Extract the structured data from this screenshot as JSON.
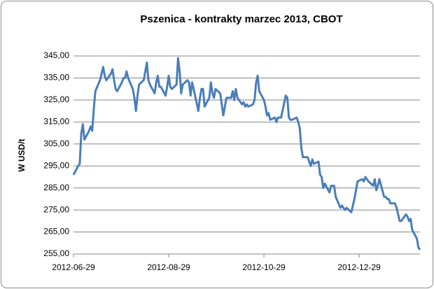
{
  "chart_data": {
    "type": "line",
    "title": "Pszenica - kontrakty marzec 2013, CBOT",
    "y_label": "W USD/t",
    "color": "#4a7ebb",
    "grid": true,
    "ylim": [
      255,
      345
    ],
    "yticks": [
      {
        "value": 255,
        "label": "255,00"
      },
      {
        "value": 265,
        "label": "265,00"
      },
      {
        "value": 275,
        "label": "275,00"
      },
      {
        "value": 285,
        "label": "285,00"
      },
      {
        "value": 295,
        "label": "295,00"
      },
      {
        "value": 305,
        "label": "305,00"
      },
      {
        "value": 315,
        "label": "315,00"
      },
      {
        "value": 325,
        "label": "325,00"
      },
      {
        "value": 335,
        "label": "335,00"
      },
      {
        "value": 345,
        "label": "345,00"
      }
    ],
    "xlim": [
      "2012-06-29",
      "2013-02-06"
    ],
    "xticks": [
      "2012-06-29",
      "2012-08-29",
      "2012-10-29",
      "2012-12-29"
    ],
    "x": [
      "2012-06-29",
      "2012-07-02",
      "2012-07-03",
      "2012-07-04",
      "2012-07-05",
      "2012-07-06",
      "2012-07-09",
      "2012-07-10",
      "2012-07-11",
      "2012-07-12",
      "2012-07-13",
      "2012-07-16",
      "2012-07-17",
      "2012-07-18",
      "2012-07-19",
      "2012-07-20",
      "2012-07-23",
      "2012-07-24",
      "2012-07-25",
      "2012-07-26",
      "2012-07-27",
      "2012-07-30",
      "2012-07-31",
      "2012-08-01",
      "2012-08-02",
      "2012-08-03",
      "2012-08-06",
      "2012-08-07",
      "2012-08-08",
      "2012-08-09",
      "2012-08-10",
      "2012-08-13",
      "2012-08-14",
      "2012-08-15",
      "2012-08-16",
      "2012-08-17",
      "2012-08-20",
      "2012-08-21",
      "2012-08-22",
      "2012-08-23",
      "2012-08-24",
      "2012-08-27",
      "2012-08-28",
      "2012-08-29",
      "2012-08-30",
      "2012-08-31",
      "2012-09-03",
      "2012-09-04",
      "2012-09-05",
      "2012-09-06",
      "2012-09-07",
      "2012-09-10",
      "2012-09-11",
      "2012-09-12",
      "2012-09-13",
      "2012-09-14",
      "2012-09-17",
      "2012-09-18",
      "2012-09-19",
      "2012-09-20",
      "2012-09-21",
      "2012-09-24",
      "2012-09-25",
      "2012-09-26",
      "2012-09-27",
      "2012-09-28",
      "2012-10-01",
      "2012-10-02",
      "2012-10-03",
      "2012-10-04",
      "2012-10-05",
      "2012-10-08",
      "2012-10-09",
      "2012-10-10",
      "2012-10-11",
      "2012-10-12",
      "2012-10-15",
      "2012-10-16",
      "2012-10-17",
      "2012-10-18",
      "2012-10-19",
      "2012-10-22",
      "2012-10-23",
      "2012-10-24",
      "2012-10-25",
      "2012-10-26",
      "2012-10-29",
      "2012-10-30",
      "2012-10-31",
      "2012-11-01",
      "2012-11-02",
      "2012-11-05",
      "2012-11-06",
      "2012-11-07",
      "2012-11-08",
      "2012-11-09",
      "2012-11-12",
      "2012-11-13",
      "2012-11-14",
      "2012-11-15",
      "2012-11-16",
      "2012-11-19",
      "2012-11-20",
      "2012-11-21",
      "2012-11-22",
      "2012-11-23",
      "2012-11-26",
      "2012-11-27",
      "2012-11-28",
      "2012-11-29",
      "2012-11-30",
      "2012-12-03",
      "2012-12-04",
      "2012-12-05",
      "2012-12-06",
      "2012-12-07",
      "2012-12-10",
      "2012-12-11",
      "2012-12-12",
      "2012-12-13",
      "2012-12-14",
      "2012-12-17",
      "2012-12-18",
      "2012-12-19",
      "2012-12-20",
      "2012-12-21",
      "2012-12-24",
      "2012-12-25",
      "2012-12-26",
      "2012-12-27",
      "2012-12-28",
      "2012-12-31",
      "2013-01-01",
      "2013-01-02",
      "2013-01-03",
      "2013-01-04",
      "2013-01-07",
      "2013-01-08",
      "2013-01-09",
      "2013-01-10",
      "2013-01-11",
      "2013-01-14",
      "2013-01-15",
      "2013-01-16",
      "2013-01-17",
      "2013-01-18",
      "2013-01-21",
      "2013-01-22",
      "2013-01-23",
      "2013-01-24",
      "2013-01-25",
      "2013-01-28",
      "2013-01-29",
      "2013-01-30",
      "2013-01-31",
      "2013-02-01",
      "2013-02-04",
      "2013-02-05",
      "2013-02-06"
    ],
    "values": [
      291,
      295,
      296,
      310,
      314,
      307,
      311,
      313,
      311,
      321,
      329,
      334,
      337,
      340,
      336,
      334,
      337,
      339,
      334,
      330,
      329,
      333,
      335,
      335,
      338,
      335,
      330,
      326,
      320,
      327,
      332,
      334,
      338,
      342,
      334,
      332,
      328,
      333,
      336,
      331,
      331,
      327,
      331,
      336,
      331,
      330,
      332,
      344,
      338,
      328,
      332,
      334,
      333,
      327,
      333,
      330,
      320,
      326,
      330,
      330,
      322,
      326,
      333,
      328,
      326,
      330,
      328,
      323,
      318,
      322,
      326,
      326,
      329,
      325,
      330,
      326,
      323,
      324,
      322,
      323,
      322,
      323,
      325,
      333,
      336,
      329,
      325,
      322,
      318,
      319,
      316,
      317,
      315,
      317,
      317,
      317,
      327,
      326,
      317,
      316,
      316,
      317,
      315,
      312,
      303,
      299,
      299,
      297,
      295,
      298,
      296,
      297,
      291,
      290,
      285,
      287,
      283,
      286,
      286,
      286,
      281,
      276,
      277,
      276,
      275,
      276,
      274,
      277,
      280,
      284,
      288,
      289,
      288,
      290,
      289,
      288,
      286,
      289,
      284,
      286,
      289,
      281,
      281,
      280,
      280,
      278,
      278,
      276,
      273,
      270,
      270,
      273,
      272,
      270,
      271,
      266,
      262,
      258,
      257
    ]
  }
}
